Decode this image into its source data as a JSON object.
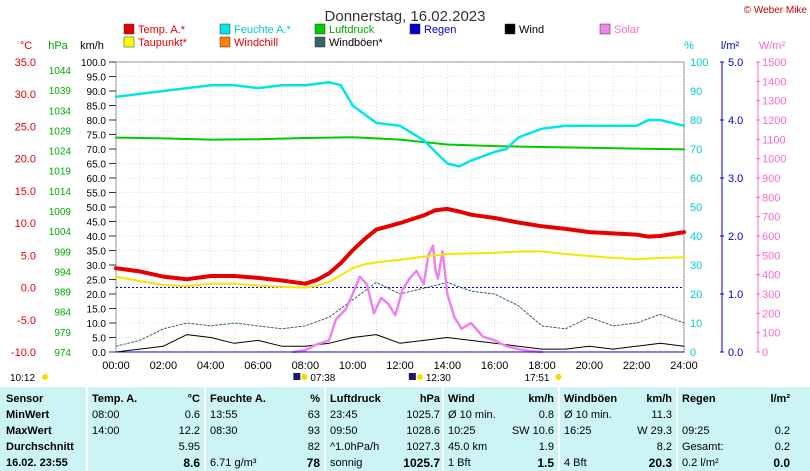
{
  "title": "Donnerstag, 16.02.2023",
  "copyright": "© Weber Mike",
  "colors": {
    "temp": "#e60000",
    "dew": "#ffff00",
    "humidity": "#00e5e5",
    "windchill": "#ff8000",
    "pressure": "#00cc00",
    "gust": "#336666",
    "rain": "#0000cc",
    "wind": "#000000",
    "solar": "#ee82ee",
    "temp_axis": "#e60000",
    "pressure_axis": "#00aa00",
    "humidity_axis": "#00cccc",
    "rain_axis": "#0000cc",
    "solar_axis": "#ff66cc",
    "table_bg": "#ccf4f4"
  },
  "axis_titles": {
    "temp": "°C",
    "pressure": "hPa",
    "wind": "km/h",
    "humidity": "%",
    "rain": "l/m²",
    "solar": "W/m²"
  },
  "legend": [
    {
      "label": "Temp. A.*",
      "color": "#e60000",
      "text_color": "#e60000"
    },
    {
      "label": "Feuchte A.*",
      "color": "#00e5e5",
      "text_color": "#00cccc"
    },
    {
      "label": "Luftdruck",
      "color": "#00cc00",
      "text_color": "#00aa00"
    },
    {
      "label": "Regen",
      "color": "#0000cc",
      "text_color": "#0000cc"
    },
    {
      "label": "Wind",
      "color": "#000000",
      "text_color": "#000000"
    },
    {
      "label": "Solar",
      "color": "#ee82ee",
      "text_color": "#ff66cc"
    },
    {
      "label": "Taupunkt*",
      "color": "#ffff00",
      "text_color": "#e60000"
    },
    {
      "label": "Windchill",
      "color": "#ff8000",
      "text_color": "#e60000"
    },
    {
      "label": "Windböen*",
      "color": "#336666",
      "text_color": "#000000"
    }
  ],
  "chart_data": {
    "type": "line",
    "x_ticks": [
      "00:00",
      "02:00",
      "04:00",
      "06:00",
      "08:00",
      "10:00",
      "12:00",
      "14:00",
      "16:00",
      "18:00",
      "20:00",
      "22:00",
      "24:00"
    ],
    "temp_ticks": [
      "35.0",
      "30.0",
      "25.0",
      "20.0",
      "15.0",
      "10.0",
      "5.0",
      "0.0",
      "-5.0",
      "-10.0"
    ],
    "pressure_ticks": [
      "1044",
      "1039",
      "1034",
      "1029",
      "1024",
      "1019",
      "1014",
      "1009",
      "1004",
      "999",
      "994",
      "989",
      "984",
      "979",
      "974"
    ],
    "wind_ticks": [
      "100.0",
      "95.0",
      "90.0",
      "85.0",
      "80.0",
      "75.0",
      "70.0",
      "65.0",
      "60.0",
      "55.0",
      "50.0",
      "45.0",
      "40.0",
      "35.0",
      "30.0",
      "25.0",
      "20.0",
      "15.0",
      "10.0",
      "5.0",
      "0.0"
    ],
    "humidity_ticks": [
      "100",
      "90",
      "80",
      "70",
      "60",
      "50",
      "40",
      "30",
      "20",
      "10",
      "0"
    ],
    "rain_ticks": [
      "5.0",
      "4.0",
      "3.0",
      "2.0",
      "1.0",
      "0.0"
    ],
    "solar_ticks": [
      "1500",
      "1400",
      "1300",
      "1200",
      "1100",
      "1000",
      "900",
      "800",
      "700",
      "600",
      "500",
      "400",
      "300",
      "200",
      "100",
      "0"
    ],
    "ranges": {
      "temp": [
        -10,
        35
      ],
      "pressure": [
        974,
        1045
      ],
      "wind": [
        0,
        100
      ],
      "humidity": [
        0,
        100
      ],
      "rain": [
        0,
        5
      ],
      "solar": [
        0,
        1500
      ],
      "x_hours": [
        0,
        24
      ]
    },
    "series": [
      {
        "name": "Temp. A.*",
        "x": [
          0,
          1,
          2,
          3,
          4,
          5,
          6,
          7,
          8,
          8.5,
          9,
          9.5,
          10,
          10.5,
          11,
          12,
          13,
          13.5,
          14,
          14.5,
          15,
          16,
          17,
          18,
          19,
          20,
          21,
          22,
          22.5,
          23,
          24
        ],
        "y": [
          3.0,
          2.5,
          1.7,
          1.3,
          1.8,
          1.8,
          1.5,
          1.1,
          0.6,
          1.2,
          2.2,
          3.8,
          5.8,
          7.5,
          9.0,
          10.0,
          11.2,
          12.0,
          12.2,
          11.8,
          11.3,
          10.8,
          10.1,
          9.5,
          9.1,
          8.6,
          8.4,
          8.2,
          7.9,
          8.0,
          8.6
        ]
      },
      {
        "name": "Taupunkt*",
        "x": [
          0,
          1,
          2,
          3,
          4,
          5,
          6,
          7,
          8,
          8.5,
          9,
          9.5,
          10,
          10.5,
          11,
          12,
          13,
          14,
          15,
          16,
          17,
          18,
          19,
          20,
          21,
          22,
          23,
          24
        ],
        "y": [
          1.7,
          1.0,
          0.4,
          0.2,
          0.6,
          0.6,
          0.3,
          0.1,
          0.0,
          0.3,
          0.9,
          1.9,
          3.0,
          3.6,
          3.9,
          4.3,
          4.8,
          5.2,
          5.3,
          5.4,
          5.6,
          5.6,
          5.2,
          4.9,
          4.6,
          4.4,
          4.6,
          4.7
        ]
      },
      {
        "name": "Feuchte A.*",
        "x": [
          0,
          1,
          2,
          3,
          4,
          5,
          6,
          7,
          8,
          9,
          9.5,
          10,
          10.5,
          11,
          12,
          13,
          13.5,
          14,
          14.5,
          15,
          16,
          16.5,
          17,
          18,
          19,
          20,
          21,
          22,
          22.5,
          23,
          24
        ],
        "y": [
          88,
          89,
          90,
          91,
          92,
          92,
          91,
          92,
          92,
          93,
          92,
          85,
          82,
          79,
          78,
          73,
          69,
          65,
          64,
          66,
          69,
          70,
          74,
          77,
          78,
          78,
          78,
          78,
          80,
          80,
          78
        ]
      },
      {
        "name": "Luftdruck",
        "x": [
          0,
          2,
          4,
          6,
          8,
          10,
          12,
          14,
          16,
          18,
          20,
          22,
          24
        ],
        "y": [
          1026.5,
          1026.3,
          1026.0,
          1026.1,
          1026.4,
          1026.6,
          1026.0,
          1024.8,
          1024.4,
          1024.2,
          1024.0,
          1023.8,
          1023.6
        ]
      },
      {
        "name": "Solar",
        "x": [
          7.5,
          8,
          8.5,
          9,
          9.3,
          9.7,
          10,
          10.3,
          10.6,
          10.9,
          11.2,
          11.5,
          11.8,
          12.1,
          12.4,
          12.7,
          13,
          13.2,
          13.4,
          13.5,
          13.6,
          13.8,
          14,
          14.3,
          14.6,
          15,
          15.5,
          16,
          16.5,
          17,
          17.5,
          18
        ],
        "y": [
          0,
          10,
          40,
          60,
          170,
          220,
          300,
          390,
          350,
          200,
          280,
          250,
          190,
          320,
          380,
          420,
          350,
          500,
          550,
          420,
          380,
          520,
          300,
          180,
          120,
          150,
          80,
          60,
          30,
          15,
          5,
          0
        ]
      },
      {
        "name": "Windböen*",
        "x": [
          0,
          1,
          2,
          3,
          4,
          5,
          6,
          7,
          8,
          9,
          10,
          11,
          12,
          13,
          14,
          15,
          16,
          17,
          18,
          19,
          20,
          21,
          22,
          23,
          24
        ],
        "y": [
          2,
          4,
          8,
          10,
          9,
          10,
          9,
          8,
          9,
          12,
          18,
          24,
          20,
          22,
          24,
          21,
          20,
          16,
          9,
          8,
          12,
          9,
          10,
          13,
          10
        ]
      },
      {
        "name": "Wind",
        "x": [
          0,
          1,
          2,
          3,
          4,
          5,
          6,
          7,
          8,
          9,
          10,
          11,
          12,
          13,
          14,
          15,
          16,
          17,
          18,
          19,
          20,
          21,
          22,
          23,
          24
        ],
        "y": [
          0,
          1,
          2,
          6,
          5,
          3,
          4,
          2,
          2,
          3,
          5,
          6,
          3,
          4,
          5,
          4,
          3,
          2,
          1,
          1,
          2,
          1,
          2,
          3,
          2
        ]
      },
      {
        "name": "Regen",
        "x": [
          0,
          24
        ],
        "y": [
          0,
          0
        ]
      }
    ],
    "sun_times": {
      "sunrise_label": "07:38",
      "sunset_label": "17:51",
      "solar_noon_label": "12:30",
      "day_len_left": "10:12"
    }
  },
  "table": {
    "columns": [
      {
        "head": "Sensor",
        "unit": ""
      },
      {
        "head": "Temp. A.",
        "unit": "°C"
      },
      {
        "head": "Feuchte A.",
        "unit": "%"
      },
      {
        "head": "Luftdruck",
        "unit": "hPa"
      },
      {
        "head": "Wind",
        "unit": "km/h"
      },
      {
        "head": "Windböen",
        "unit": "km/h"
      },
      {
        "head": "Regen",
        "unit": "l/m²"
      }
    ],
    "rows": [
      {
        "label": "MinWert",
        "cells": [
          [
            "08:00",
            "0.6"
          ],
          [
            "13:55",
            "63"
          ],
          [
            "23:45",
            "1025.7"
          ],
          [
            "Ø 10 min.",
            "0.8"
          ],
          [
            "Ø 10 min.",
            "11.3"
          ],
          [
            "",
            ""
          ]
        ]
      },
      {
        "label": "MaxWert",
        "cells": [
          [
            "14:00",
            "12.2"
          ],
          [
            "08:30",
            "93"
          ],
          [
            "09:50",
            "1028.6"
          ],
          [
            "10:25",
            "SW 10.6"
          ],
          [
            "16:25",
            "W 29.3"
          ],
          [
            "09:25",
            "0.2"
          ]
        ]
      },
      {
        "label": "Durchschnitt",
        "cells": [
          [
            "",
            "5.95"
          ],
          [
            "",
            "82"
          ],
          [
            "^1.0hPa/h",
            "1027.3"
          ],
          [
            "45.0 km",
            "1.9"
          ],
          [
            "",
            "8.2"
          ],
          [
            "Gesamt:",
            "0.2"
          ]
        ]
      },
      {
        "label": "16.02. 23:55",
        "cells": [
          [
            "",
            "8.6"
          ],
          [
            "6.71 g/m³",
            "78"
          ],
          [
            "sonnig",
            "1025.7"
          ],
          [
            "1 Bft",
            "1.5"
          ],
          [
            "4 Bft",
            "20.3"
          ],
          [
            "0.2 l/m²",
            "0.0"
          ]
        ]
      }
    ]
  }
}
